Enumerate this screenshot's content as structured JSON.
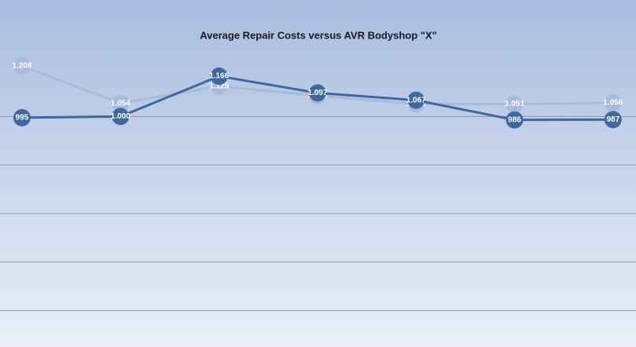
{
  "chart_data": {
    "type": "line",
    "title": "Average Repair Costs  versus AVR Bodyshop \"X\"",
    "categories": [
      null,
      null,
      null,
      null,
      null,
      null,
      null
    ],
    "series": [
      {
        "color": "#a9bbdc",
        "values": [
          1208,
          1054,
          1125,
          1086,
          1052,
          1051,
          1056
        ],
        "value_labels": [
          "1.208",
          "1.054",
          "1.125",
          "1.086",
          "1.052",
          "1.051",
          "1.056"
        ]
      },
      {
        "color": "#3d68a0",
        "values": [
          995,
          1000,
          1166,
          1097,
          1067,
          986,
          987
        ],
        "value_labels": [
          "995",
          "1.000",
          "1.166",
          "1.097",
          "1.067",
          "986",
          "987"
        ]
      }
    ],
    "ylim": [
      50,
      1480
    ],
    "yticks": [
      200,
      400,
      600,
      800,
      1000
    ],
    "grid": true
  }
}
